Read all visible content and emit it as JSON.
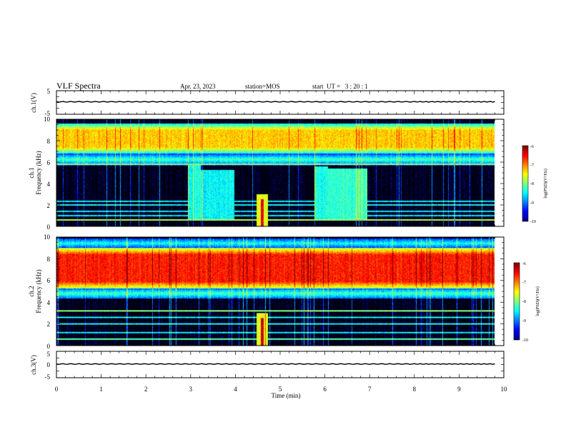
{
  "header": {
    "title": "VLF Spectra",
    "date": "Apr. 23, 2023",
    "station": "station=MOS",
    "start": "start  UT =   3 : 20 : 1"
  },
  "chart_data": [
    {
      "type": "line",
      "panel": "ch1-voltage",
      "ylabel": "ch.1(V)",
      "ylim": [
        -5,
        5
      ],
      "yticks": [
        5,
        -5
      ],
      "series": [
        {
          "values": [
            {
              "x": 0.0,
              "y": 0.3
            },
            {
              "x": 2.0,
              "y": 0.3
            },
            {
              "x": 4.0,
              "y": 0.3
            },
            {
              "x": 6.0,
              "y": 0.3
            },
            {
              "x": 8.0,
              "y": 0.3
            },
            {
              "x": 9.8,
              "y": 0.3
            }
          ]
        }
      ]
    },
    {
      "type": "heatmap",
      "panel": "ch1-spectrogram",
      "ylabel_top": "ch.1",
      "ylabel": "Frequency (kHz)",
      "ylim": [
        0,
        10
      ],
      "yticks": [
        0,
        2,
        4,
        6,
        8,
        10
      ],
      "xlim": [
        0,
        9.85
      ],
      "colorbar": {
        "label": "log(PSD)(V²/Hz)",
        "ticks": [
          -6,
          -7,
          -8,
          -9,
          -10
        ],
        "range": [
          -10,
          -6
        ]
      },
      "bands": [
        {
          "f0": 6.8,
          "f1": 9.6,
          "level": -7.3
        },
        {
          "f0": 5.7,
          "f1": 6.8,
          "level": -8.1
        }
      ],
      "patches": [
        {
          "t0": 2.95,
          "t1": 3.25,
          "f0": 0.5,
          "f1": 5.9,
          "level": -8.4
        },
        {
          "t0": 3.25,
          "t1": 4.0,
          "f0": 0.5,
          "f1": 5.3,
          "level": -8.5
        },
        {
          "t0": 5.8,
          "t1": 6.1,
          "f0": 0.5,
          "f1": 5.6,
          "level": -8.4
        },
        {
          "t0": 6.1,
          "t1": 7.0,
          "f0": 0.5,
          "f1": 5.4,
          "level": -8.3
        },
        {
          "t0": 4.5,
          "t1": 4.75,
          "f0": 0.0,
          "f1": 3.0,
          "level": -7.6
        },
        {
          "t0": 4.6,
          "t1": 4.66,
          "f0": 0.0,
          "f1": 2.5,
          "level": -6.4
        }
      ],
      "lines": [
        {
          "f": 0.6,
          "level": -7.8
        },
        {
          "f": 1.0,
          "level": -8.6
        },
        {
          "f": 1.4,
          "level": -8.6
        },
        {
          "f": 2.0,
          "level": -8.5
        },
        {
          "f": 2.3,
          "level": -8.6
        },
        {
          "f": 5.8,
          "level": -7.9
        }
      ]
    },
    {
      "type": "heatmap",
      "panel": "ch2-spectrogram",
      "ylabel_top": "ch.2",
      "ylabel": "Frequency (kHz)",
      "ylim": [
        0,
        10
      ],
      "yticks": [
        0,
        2,
        4,
        6,
        8,
        10
      ],
      "xlim": [
        0,
        9.85
      ],
      "colorbar": {
        "label": "log(PSD)(V²/Hz)",
        "ticks": [
          -6,
          -7,
          -8,
          -9,
          -10
        ],
        "range": [
          -10,
          -6
        ]
      },
      "bands": [
        {
          "f0": 5.3,
          "f1": 9.0,
          "level": -6.6
        },
        {
          "f0": 4.3,
          "f1": 5.3,
          "level": -8.0
        },
        {
          "f0": 9.0,
          "f1": 9.9,
          "level": -8.1
        }
      ],
      "patches": [
        {
          "t0": 4.5,
          "t1": 4.75,
          "f0": 0.0,
          "f1": 3.0,
          "level": -7.6
        },
        {
          "t0": 4.6,
          "t1": 4.66,
          "f0": 0.0,
          "f1": 2.5,
          "level": -6.4
        }
      ],
      "lines": [
        {
          "f": 0.6,
          "level": -8.2
        },
        {
          "f": 1.2,
          "level": -8.6
        },
        {
          "f": 2.0,
          "level": -8.5
        },
        {
          "f": 2.6,
          "level": -8.5
        },
        {
          "f": 3.2,
          "level": -8.0
        }
      ]
    },
    {
      "type": "line",
      "panel": "ch3-voltage",
      "ylabel": "ch.3(V)",
      "ylim": [
        -5,
        5
      ],
      "yticks": [
        5,
        0,
        -5
      ],
      "series": [
        {
          "values": [
            {
              "x": 0.0,
              "y": 0.2
            },
            {
              "x": 2.0,
              "y": 0.2
            },
            {
              "x": 4.0,
              "y": 0.2
            },
            {
              "x": 6.0,
              "y": 0.2
            },
            {
              "x": 8.0,
              "y": 0.2
            },
            {
              "x": 9.8,
              "y": 0.2
            }
          ]
        }
      ]
    }
  ],
  "time_axis": {
    "xlabel": "Time (min)",
    "xlim": [
      0,
      10
    ],
    "ticks": [
      0,
      1,
      2,
      3,
      4,
      5,
      6,
      7,
      8,
      9,
      10
    ]
  }
}
